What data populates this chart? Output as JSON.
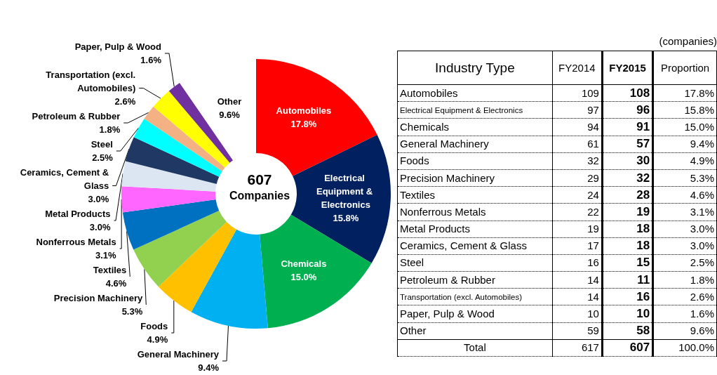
{
  "chart_data": [
    {
      "type": "donut",
      "annotations": [
        "607",
        "Companies"
      ],
      "categories": [
        "Automobiles",
        "Electrical Equipment & Electronics",
        "Chemicals",
        "General Machinery",
        "Foods",
        "Precision Machinery",
        "Textiles",
        "Nonferrous Metals",
        "Metal Products",
        "Ceramics, Cement & Glass",
        "Steel",
        "Petroleum & Rubber",
        "Transportation (excl. Automobiles)",
        "Paper, Pulp & Wood",
        "Other"
      ],
      "values": [
        17.8,
        15.8,
        15.0,
        9.4,
        4.9,
        5.3,
        4.6,
        3.1,
        3.0,
        3.0,
        2.5,
        1.8,
        2.6,
        1.6,
        9.6
      ],
      "value_labels": [
        "17.8%",
        "15.8%",
        "15.0%",
        "9.4%",
        "4.9%",
        "5.3%",
        "4.6%",
        "3.1%",
        "3.0%",
        "3.0%",
        "2.5%",
        "1.8%",
        "2.6%",
        "1.6%",
        "9.6%"
      ],
      "colors": [
        "#ff0000",
        "#002060",
        "#00b050",
        "#00b0f0",
        "#ffc000",
        "#92d050",
        "#0070c0",
        "#ff66ff",
        "#dce6f2",
        "#1f3864",
        "#00ffff",
        "#f4b183",
        "#ffff00",
        "#7030a0",
        "#ffffff"
      ],
      "legend": false
    },
    {
      "type": "other",
      "data_labels": true,
      "xlabel": "Industry Type",
      "annotations": [
        "(companies)"
      ],
      "categories": [
        "Automobiles",
        "Electrical Equipment & Electronics",
        "Chemicals",
        "General Machinery",
        "Foods",
        "Precision Machinery",
        "Textiles",
        "Nonferrous Metals",
        "Metal Products",
        "Ceramics, Cement & Glass",
        "Steel",
        "Petroleum & Rubber",
        "Transportation (excl. Automobiles)",
        "Paper, Pulp & Wood",
        "Other",
        "Total"
      ],
      "series": [
        {
          "name": "FY2014",
          "values": [
            109,
            97,
            94,
            61,
            32,
            29,
            24,
            22,
            19,
            17,
            16,
            14,
            14,
            10,
            59,
            617
          ]
        },
        {
          "name": "FY2015",
          "values": [
            108,
            96,
            91,
            57,
            30,
            32,
            28,
            19,
            18,
            18,
            15,
            11,
            16,
            10,
            58,
            607
          ]
        },
        {
          "name": "Proportion",
          "values": [
            17.8,
            15.8,
            15.0,
            9.4,
            4.9,
            5.3,
            4.6,
            3.1,
            3.0,
            3.0,
            2.5,
            1.8,
            2.6,
            1.6,
            9.6,
            100.0
          ],
          "value_labels": [
            "17.8%",
            "15.8%",
            "15.0%",
            "9.4%",
            "4.9%",
            "5.3%",
            "4.6%",
            "3.1%",
            "3.0%",
            "3.0%",
            "2.5%",
            "1.8%",
            "2.6%",
            "1.6%",
            "9.6%",
            "100.0%"
          ]
        }
      ]
    }
  ]
}
